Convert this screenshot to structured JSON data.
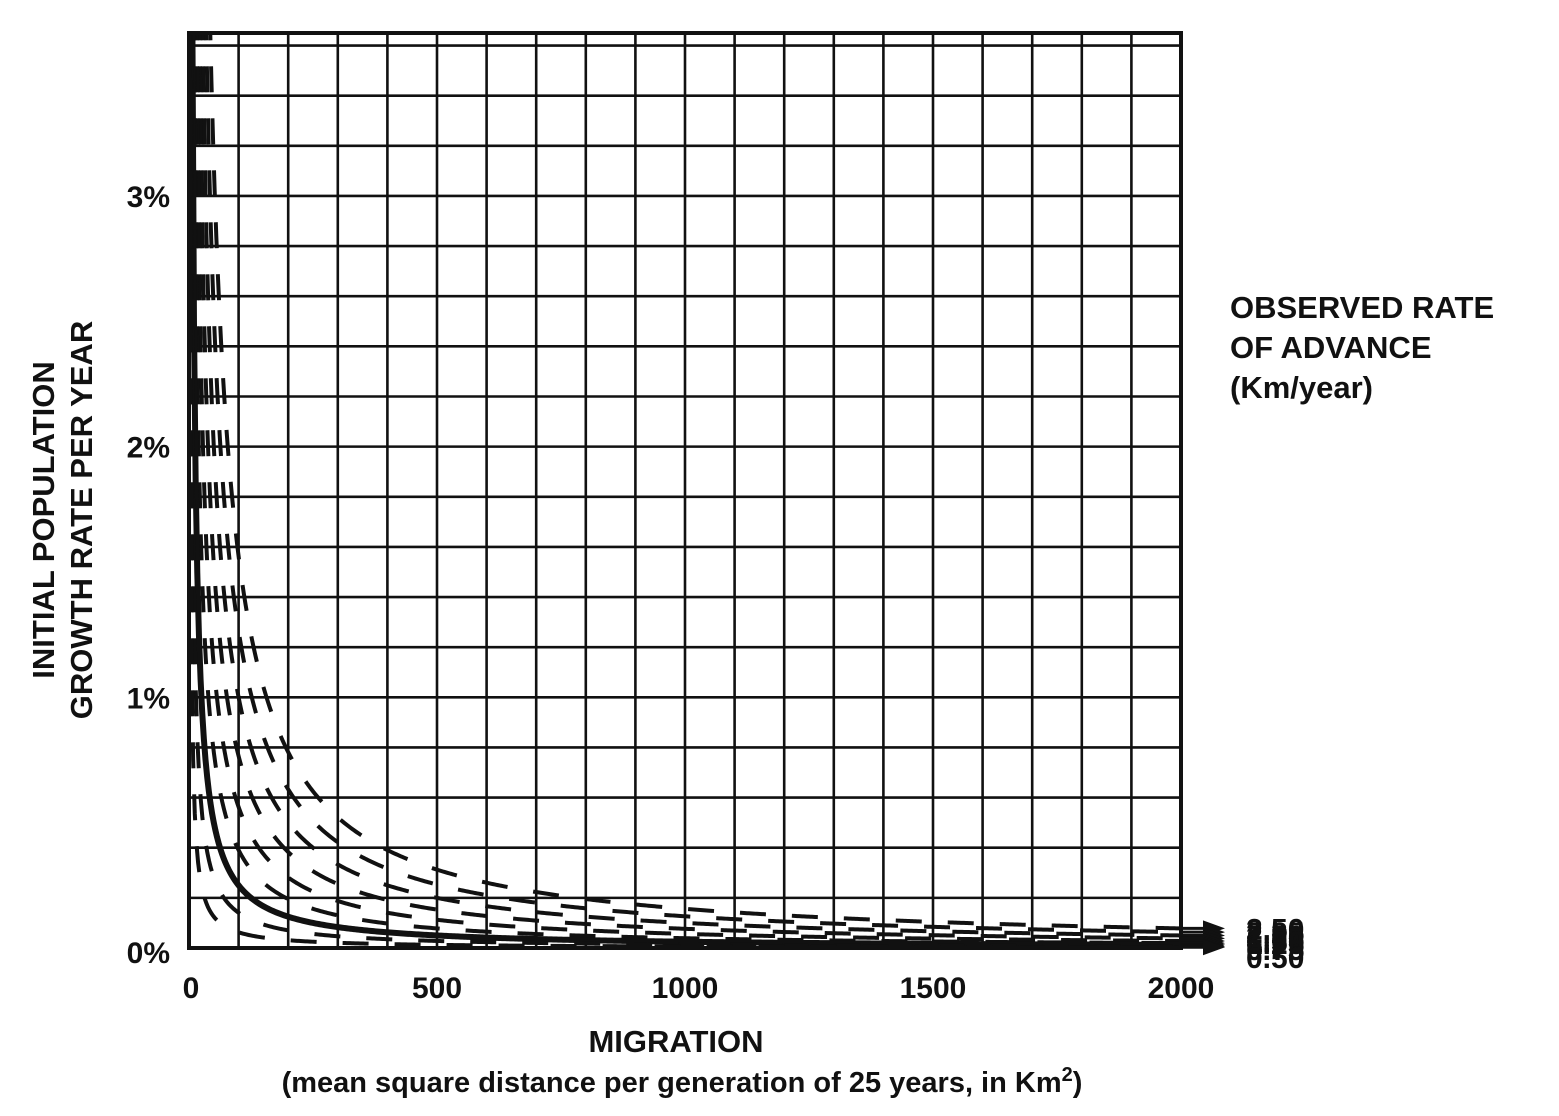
{
  "chart_data": {
    "type": "line",
    "xlabel": "MIGRATION",
    "xlabel_sub": "(mean square distance per generation of 25 years, in Km",
    "xlabel_sub_sup": "2",
    "xlabel_sub_end": ")",
    "ylabel_line1": "INITIAL POPULATION",
    "ylabel_line2": "GROWTH RATE PER YEAR",
    "legend_title_line1": "OBSERVED RATE",
    "legend_title_line2": "OF ADVANCE",
    "legend_title_line3": "(Km/year)",
    "xlim": [
      0,
      2000
    ],
    "ylim": [
      0,
      3.65
    ],
    "x_ticks": [
      0,
      500,
      1000,
      1500,
      2000
    ],
    "x_tick_labels": [
      "0",
      "500",
      "1000",
      "1500",
      "2000"
    ],
    "y_ticks": [
      0,
      1,
      2,
      3
    ],
    "y_tick_labels": [
      "0%",
      "1%",
      "2%",
      "3%"
    ],
    "grid": true,
    "grid_x_step": 100,
    "grid_y_step": 0.2,
    "legend_position": "right",
    "relation": "growth_rate_percent = 25 * rate^2 / migration",
    "series": [
      {
        "name": "2.50",
        "rate": 2.5,
        "style": "dashed"
      },
      {
        "name": "2.25",
        "rate": 2.25,
        "style": "dashed"
      },
      {
        "name": "2.00",
        "rate": 2.0,
        "style": "dashed"
      },
      {
        "name": "1.75",
        "rate": 1.75,
        "style": "dashed"
      },
      {
        "name": "1.50",
        "rate": 1.5,
        "style": "dashed"
      },
      {
        "name": "1.25",
        "rate": 1.25,
        "style": "dashed"
      },
      {
        "name": "1.00",
        "rate": 1.0,
        "style": "solid"
      },
      {
        "name": "0.75",
        "rate": 0.75,
        "style": "dashed"
      },
      {
        "name": "0.50",
        "rate": 0.5,
        "style": "dashed"
      }
    ]
  }
}
